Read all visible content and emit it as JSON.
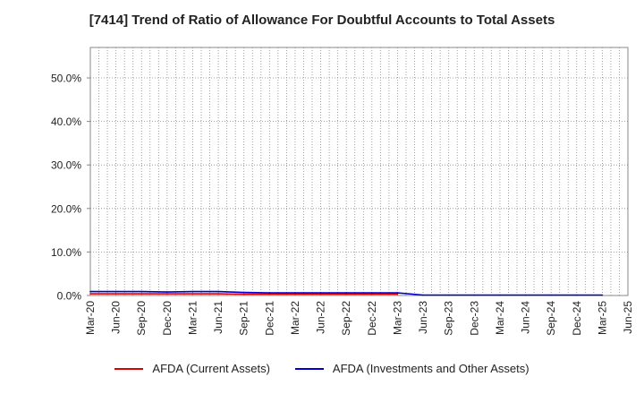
{
  "chart_data": {
    "type": "line",
    "title": "[7414]  Trend of Ratio of Allowance For Doubtful Accounts to Total Assets",
    "xlabel": "",
    "ylabel": "",
    "ylim": [
      0,
      57
    ],
    "yticks": [
      0,
      10,
      20,
      30,
      40,
      50
    ],
    "ytick_labels": [
      "0.0%",
      "10.0%",
      "20.0%",
      "30.0%",
      "40.0%",
      "50.0%"
    ],
    "x_tick_labels": [
      "Mar-20",
      "Jun-20",
      "Sep-20",
      "Dec-20",
      "Mar-21",
      "Jun-21",
      "Sep-21",
      "Dec-21",
      "Mar-22",
      "Jun-22",
      "Sep-22",
      "Dec-22",
      "Mar-23",
      "Jun-23",
      "Sep-23",
      "Dec-23",
      "Mar-24",
      "Jun-24",
      "Sep-24",
      "Dec-24",
      "Mar-25",
      "Jun-25"
    ],
    "grid": true,
    "legend_position": "bottom-center",
    "series": [
      {
        "name": "AFDA (Current Assets)",
        "color": "#dd0000",
        "points": [
          {
            "x": "Mar-20",
            "y": 0.4
          },
          {
            "x": "Jun-20",
            "y": 0.4
          },
          {
            "x": "Sep-20",
            "y": 0.4
          },
          {
            "x": "Dec-20",
            "y": 0.4
          },
          {
            "x": "Mar-21",
            "y": 0.4
          },
          {
            "x": "Jun-21",
            "y": 0.4
          },
          {
            "x": "Sep-21",
            "y": 0.3
          },
          {
            "x": "Dec-21",
            "y": 0.3
          },
          {
            "x": "Mar-22",
            "y": 0.3
          },
          {
            "x": "Jun-22",
            "y": 0.3
          },
          {
            "x": "Sep-22",
            "y": 0.3
          },
          {
            "x": "Dec-22",
            "y": 0.3
          },
          {
            "x": "Mar-23",
            "y": 0.3
          }
        ]
      },
      {
        "name": "AFDA (Investments and Other Assets)",
        "color": "#0000cc",
        "points": [
          {
            "x": "Mar-20",
            "y": 0.9
          },
          {
            "x": "Jun-20",
            "y": 0.9
          },
          {
            "x": "Sep-20",
            "y": 0.9
          },
          {
            "x": "Dec-20",
            "y": 0.8
          },
          {
            "x": "Mar-21",
            "y": 0.9
          },
          {
            "x": "Jun-21",
            "y": 0.9
          },
          {
            "x": "Sep-21",
            "y": 0.7
          },
          {
            "x": "Dec-21",
            "y": 0.6
          },
          {
            "x": "Mar-22",
            "y": 0.6
          },
          {
            "x": "Jun-22",
            "y": 0.6
          },
          {
            "x": "Sep-22",
            "y": 0.6
          },
          {
            "x": "Dec-22",
            "y": 0.6
          },
          {
            "x": "Mar-23",
            "y": 0.6
          },
          {
            "x": "Jun-23",
            "y": 0.1
          },
          {
            "x": "Sep-23",
            "y": 0.1
          },
          {
            "x": "Dec-23",
            "y": 0.1
          },
          {
            "x": "Mar-24",
            "y": 0.1
          },
          {
            "x": "Jun-24",
            "y": 0.1
          },
          {
            "x": "Sep-24",
            "y": 0.1
          },
          {
            "x": "Dec-24",
            "y": 0.1
          },
          {
            "x": "Mar-25",
            "y": 0.1
          }
        ]
      }
    ]
  }
}
